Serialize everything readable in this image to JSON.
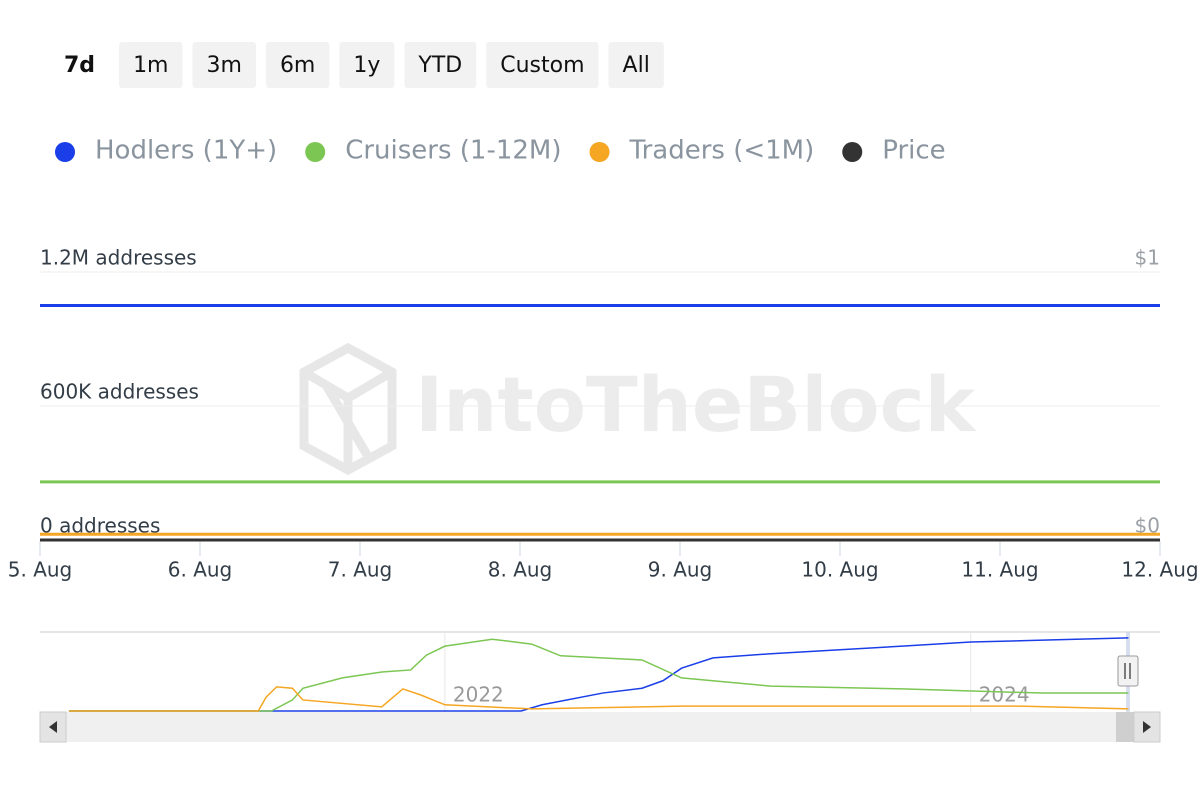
{
  "range_buttons": [
    {
      "label": "7d",
      "active": true
    },
    {
      "label": "1m",
      "active": false
    },
    {
      "label": "3m",
      "active": false
    },
    {
      "label": "6m",
      "active": false
    },
    {
      "label": "1y",
      "active": false
    },
    {
      "label": "YTD",
      "active": false
    },
    {
      "label": "Custom",
      "active": false
    },
    {
      "label": "All",
      "active": false
    }
  ],
  "watermark": "IntoTheBlock",
  "chart_data": [
    {
      "type": "line",
      "categories": [
        "5. Aug",
        "6. Aug",
        "7. Aug",
        "8. Aug",
        "9. Aug",
        "10. Aug",
        "11. Aug",
        "12. Aug"
      ],
      "series": [
        {
          "name": "Hodlers (1Y+)",
          "color": "#1a3ee8",
          "values": [
            1050000,
            1050000,
            1050000,
            1050000,
            1050000,
            1050000,
            1050000,
            1050000
          ]
        },
        {
          "name": "Cruisers (1-12M)",
          "color": "#7cc653",
          "values": [
            260000,
            260000,
            260000,
            260000,
            260000,
            260000,
            260000,
            260000
          ]
        },
        {
          "name": "Traders (<1M)",
          "color": "#f5a623",
          "values": [
            26000,
            26000,
            26000,
            26000,
            26000,
            26000,
            26000,
            26000
          ]
        },
        {
          "name": "Price",
          "color": "#333333",
          "axis": "y2",
          "values": [
            0,
            0,
            0,
            0,
            0,
            0,
            0,
            0
          ]
        }
      ],
      "ylim": [
        0,
        1200000
      ],
      "yticks": [
        {
          "value": 0,
          "label": "0 addresses"
        },
        {
          "value": 600000,
          "label": "600K addresses"
        },
        {
          "value": 1200000,
          "label": "1.2M addresses"
        }
      ],
      "y2lim": [
        0,
        1
      ],
      "y2ticks": [
        {
          "value": 0,
          "label": "$0"
        },
        {
          "value": 1,
          "label": "$1"
        }
      ],
      "grid": true,
      "legend": "top-left"
    },
    {
      "type": "line",
      "xlim": [
        2020.46,
        2024.72
      ],
      "xticks": [
        2022,
        2024
      ],
      "ylim": [
        0,
        1116000
      ],
      "grid": true,
      "series": [
        {
          "color": "#1a3ee8",
          "x": [
            2020.57,
            2022.29,
            2022.37,
            2022.6,
            2022.75,
            2022.83,
            2022.9,
            2023.02,
            2023.24,
            2023.47,
            2023.74,
            2024.0,
            2024.31,
            2024.6
          ],
          "values": [
            0,
            0,
            90000,
            260000,
            330000,
            440000,
            620000,
            770000,
            830000,
            880000,
            940000,
            1000000,
            1030000,
            1060000
          ]
        },
        {
          "color": "#7cc653",
          "x": [
            2020.57,
            2021.34,
            2021.42,
            2021.46,
            2021.61,
            2021.76,
            2021.87,
            2021.93,
            2022.0,
            2022.18,
            2022.33,
            2022.44,
            2022.75,
            2022.9,
            2023.24,
            2023.74,
            2024.27,
            2024.6
          ],
          "values": [
            0,
            0,
            160000,
            330000,
            480000,
            565000,
            595000,
            810000,
            940000,
            1040000,
            970000,
            800000,
            740000,
            480000,
            360000,
            320000,
            260000,
            260000
          ]
        },
        {
          "color": "#f5a623",
          "x": [
            2020.57,
            2021.29,
            2021.32,
            2021.36,
            2021.42,
            2021.46,
            2021.76,
            2021.84,
            2021.91,
            2022.0,
            2022.33,
            2022.9,
            2024.19,
            2024.6
          ],
          "values": [
            0,
            0,
            200000,
            350000,
            330000,
            160000,
            60000,
            320000,
            230000,
            90000,
            30000,
            70000,
            70000,
            30000
          ]
        }
      ]
    }
  ]
}
